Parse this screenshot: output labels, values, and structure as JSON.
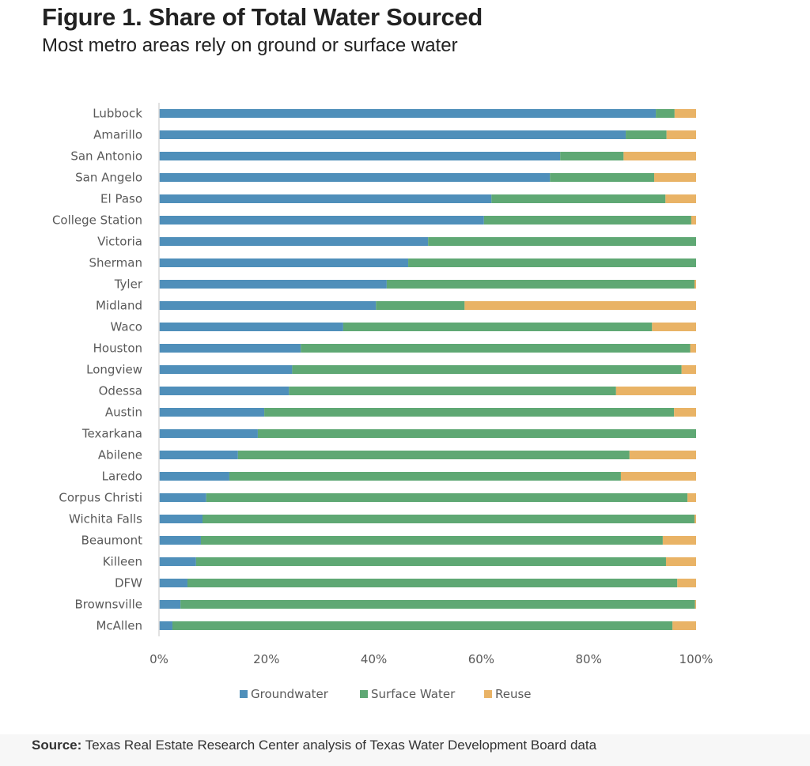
{
  "header": {
    "title": "Figure 1. Share of Total Water Sourced",
    "subtitle": "Most metro areas rely on ground or surface water"
  },
  "source": {
    "label": "Source:",
    "text": " Texas Real Estate Research Center analysis of Texas Water Development Board data"
  },
  "chart_data": {
    "type": "bar",
    "orientation": "horizontal",
    "stacked": true,
    "title": "Figure 1. Share of Total Water Sourced",
    "subtitle": "Most metro areas rely on ground or surface water",
    "xlabel": "",
    "ylabel": "",
    "xlim": [
      0,
      100
    ],
    "x_ticks": [
      "0%",
      "20%",
      "40%",
      "60%",
      "80%",
      "100%"
    ],
    "grid": false,
    "legend_position": "bottom",
    "categories": [
      "Lubbock",
      "Amarillo",
      "San Antonio",
      "San Angelo",
      "El Paso",
      "College Station",
      "Victoria",
      "Sherman",
      "Tyler",
      "Midland",
      "Waco",
      "Houston",
      "Longview",
      "Odessa",
      "Austin",
      "Texarkana",
      "Abilene",
      "Laredo",
      "Corpus Christi",
      "Wichita Falls",
      "Beaumont",
      "Killeen",
      "DFW",
      "Brownsville",
      "McAllen"
    ],
    "series": [
      {
        "name": "Groundwater",
        "color": "#4f8fba",
        "values": [
          92.5,
          86.9,
          74.7,
          72.8,
          61.9,
          60.5,
          50.1,
          46.4,
          42.4,
          40.4,
          34.3,
          26.4,
          24.8,
          24.2,
          19.6,
          18.4,
          14.7,
          13.1,
          8.8,
          8.1,
          7.8,
          6.9,
          5.3,
          4.0,
          2.5
        ]
      },
      {
        "name": "Surface Water",
        "color": "#5fa874",
        "values": [
          3.5,
          7.6,
          11.8,
          19.4,
          32.4,
          38.6,
          49.9,
          53.6,
          57.3,
          16.5,
          57.5,
          72.5,
          72.5,
          60.9,
          76.3,
          81.6,
          72.9,
          72.9,
          89.6,
          91.6,
          86.0,
          87.5,
          91.2,
          95.8,
          93.1
        ]
      },
      {
        "name": "Reuse",
        "color": "#e9b366",
        "values": [
          4.0,
          5.5,
          13.5,
          7.8,
          5.7,
          0.9,
          0.0,
          0.0,
          0.3,
          43.1,
          8.2,
          1.1,
          2.7,
          14.9,
          4.1,
          0.0,
          12.4,
          14.0,
          1.6,
          0.3,
          6.2,
          5.6,
          3.5,
          0.2,
          4.4
        ]
      }
    ]
  }
}
